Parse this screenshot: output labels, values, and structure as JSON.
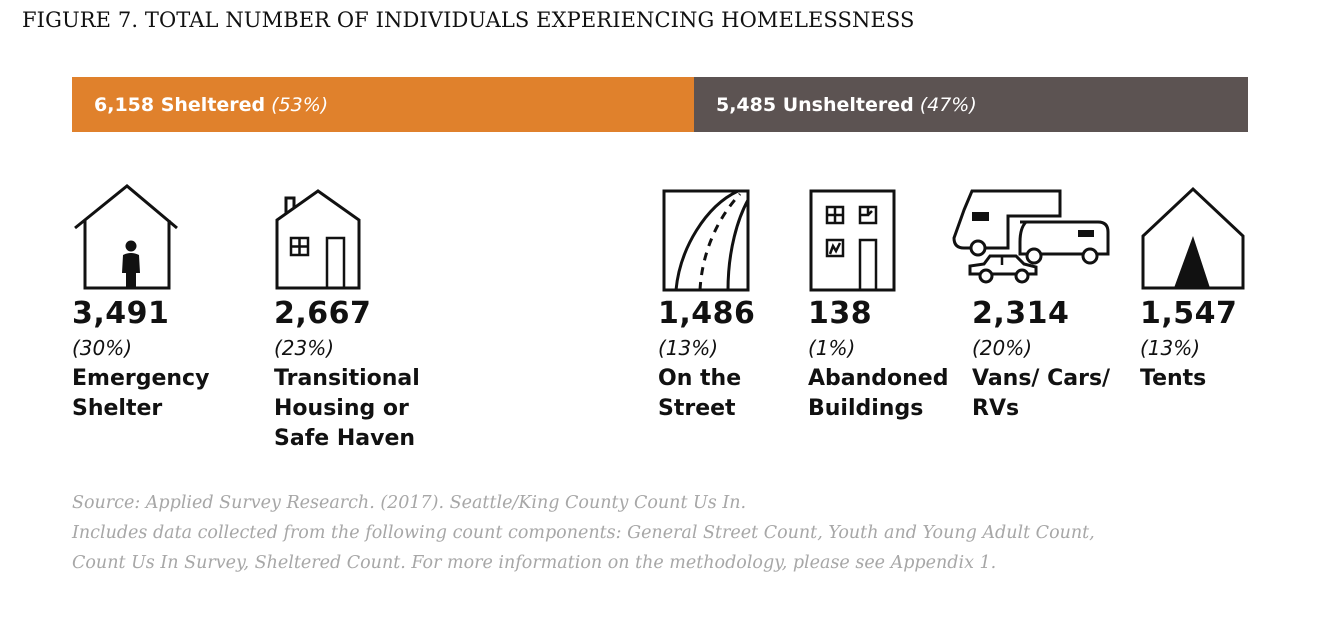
{
  "title": "FIGURE 7. TOTAL NUMBER OF INDIVIDUALS EXPERIENCING HOMELESSNESS",
  "colors": {
    "sheltered": "#e0812c",
    "unsheltered": "#5c5352",
    "icon": "#111111",
    "notes": "#a7a7a7"
  },
  "chart_data": {
    "type": "bar",
    "stacked_bar": {
      "segments": [
        {
          "count_label": "6,158 Sheltered",
          "pct_label": "(53%)",
          "value": 6158
        },
        {
          "count_label": "5,485 Unsheltered",
          "pct_label": "(47%)",
          "value": 5485
        }
      ]
    },
    "categories": [
      {
        "group": "sheltered",
        "icon": "house-person-icon",
        "value": 3491,
        "value_label": "3,491",
        "pct_label": "(30%)",
        "label": "Emergency\nShelter"
      },
      {
        "group": "sheltered",
        "icon": "house-window-door-icon",
        "value": 2667,
        "value_label": "2,667",
        "pct_label": "(23%)",
        "label": "Transitional\nHousing or\nSafe Haven"
      },
      {
        "group": "unsheltered",
        "icon": "road-icon",
        "value": 1486,
        "value_label": "1,486",
        "pct_label": "(13%)",
        "label": "On the\nStreet"
      },
      {
        "group": "unsheltered",
        "icon": "abandoned-building-icon",
        "value": 138,
        "value_label": "138",
        "pct_label": "(1%)",
        "label": "Abandoned\nBuildings"
      },
      {
        "group": "unsheltered",
        "icon": "vehicles-icon",
        "value": 2314,
        "value_label": "2,314",
        "pct_label": "(20%)",
        "label": "Vans/ Cars/\nRVs"
      },
      {
        "group": "unsheltered",
        "icon": "tent-icon",
        "value": 1547,
        "value_label": "1,547",
        "pct_label": "(13%)",
        "label": "Tents"
      }
    ]
  },
  "notes": {
    "line1": "Source: Applied Survey Research. (2017). Seattle/King County Count Us In.",
    "line2": "Includes data collected from the following count components: General Street Count, Youth and Young Adult Count,",
    "line3": "Count Us In Survey, Sheltered Count. For more information on the methodology, please see Appendix 1."
  }
}
